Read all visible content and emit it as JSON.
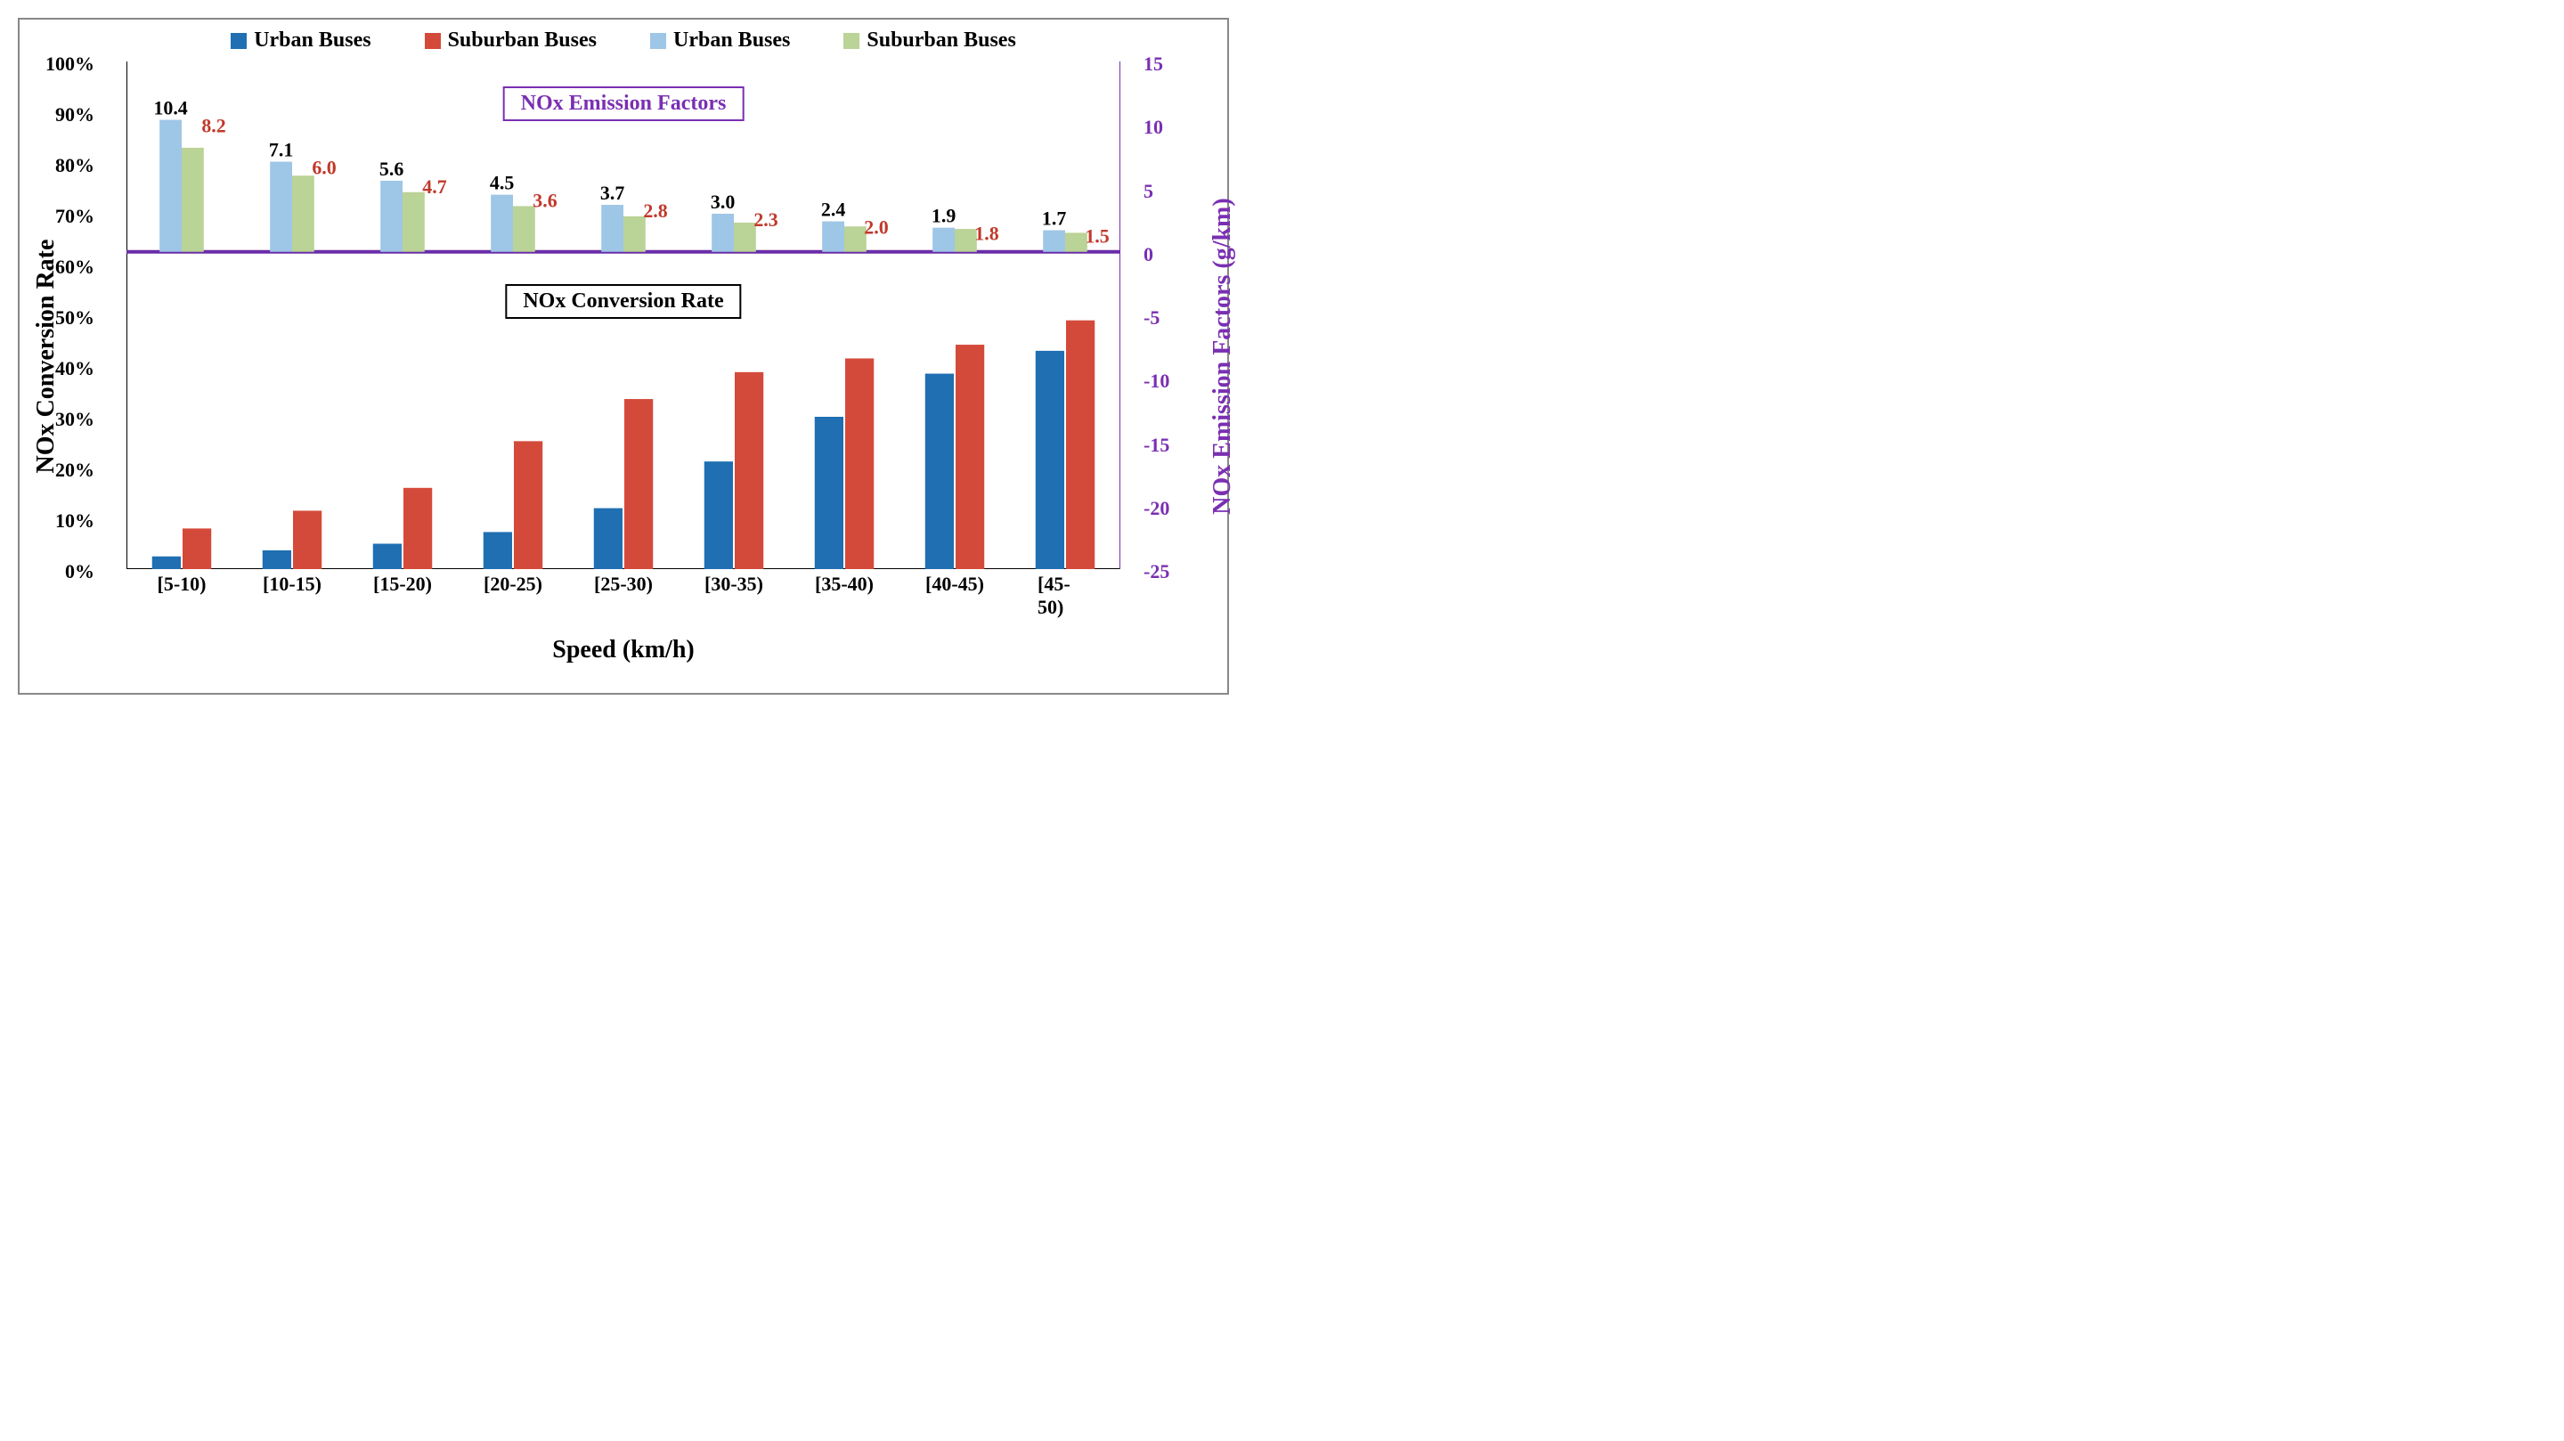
{
  "legend": {
    "items": [
      {
        "label": "Urban Buses",
        "color": "#1f6fb2"
      },
      {
        "label": "Suburban Buses",
        "color": "#d44a3a"
      },
      {
        "label": "Urban Buses",
        "color": "#9ec6e6"
      },
      {
        "label": "Suburban Buses",
        "color": "#bad396"
      }
    ]
  },
  "chart": {
    "type": "bar-dual-axis",
    "categories": [
      "[5-10)",
      "[10-15)",
      "[15-20)",
      "[20-25)",
      "[25-30)",
      "[30-35)",
      "[35-40)",
      "[40-45)",
      "[45-50)"
    ],
    "x_label": "Speed (km/h)",
    "left_axis": {
      "title": "NOx Conversion Rate",
      "color": "#000000",
      "min": 0,
      "max": 100,
      "step": 10,
      "suffix": "%"
    },
    "right_axis": {
      "title": "NOx Emission Factors (g/km)",
      "color": "#7a2fb2",
      "min": -25,
      "max": 15,
      "step": 5,
      "suffix": ""
    },
    "baseline_right": 0,
    "conversion_rate": {
      "urban": [
        2.5,
        3.7,
        5.0,
        7.3,
        12.0,
        21.2,
        30.0,
        38.5,
        43.0
      ],
      "suburban": [
        8.0,
        11.5,
        16.0,
        25.2,
        33.5,
        38.8,
        41.5,
        44.2,
        49.0
      ],
      "urban_color": "#1f6fb2",
      "suburban_color": "#d44a3a",
      "bar_gap": 2,
      "fontsize": 22
    },
    "emission_factors": {
      "urban": [
        10.4,
        7.1,
        5.6,
        4.5,
        3.7,
        3.0,
        2.4,
        1.9,
        1.7
      ],
      "suburban": [
        8.2,
        6.0,
        4.7,
        3.6,
        2.8,
        2.3,
        2.0,
        1.8,
        1.5
      ],
      "urban_color": "#9ec6e6",
      "suburban_color": "#bad396",
      "urban_label_color": "#000000",
      "suburban_label_color": "#c0392b",
      "bar_gap": 0,
      "fontsize": 22
    },
    "annotations": {
      "emission": {
        "text": "NOx Emission Factors",
        "border": "#7a2fb2",
        "text_color": "#7a2fb2",
        "top_percent_left": 92
      },
      "conversion": {
        "text": "NOx Conversion Rate",
        "border": "#000000",
        "text_color": "#000000",
        "top_percent_left": 53
      }
    },
    "baseline_line_color": "#6a2da8",
    "baseline_line_width": 4,
    "axis_color": "#000000",
    "font_family": "Times New Roman"
  }
}
